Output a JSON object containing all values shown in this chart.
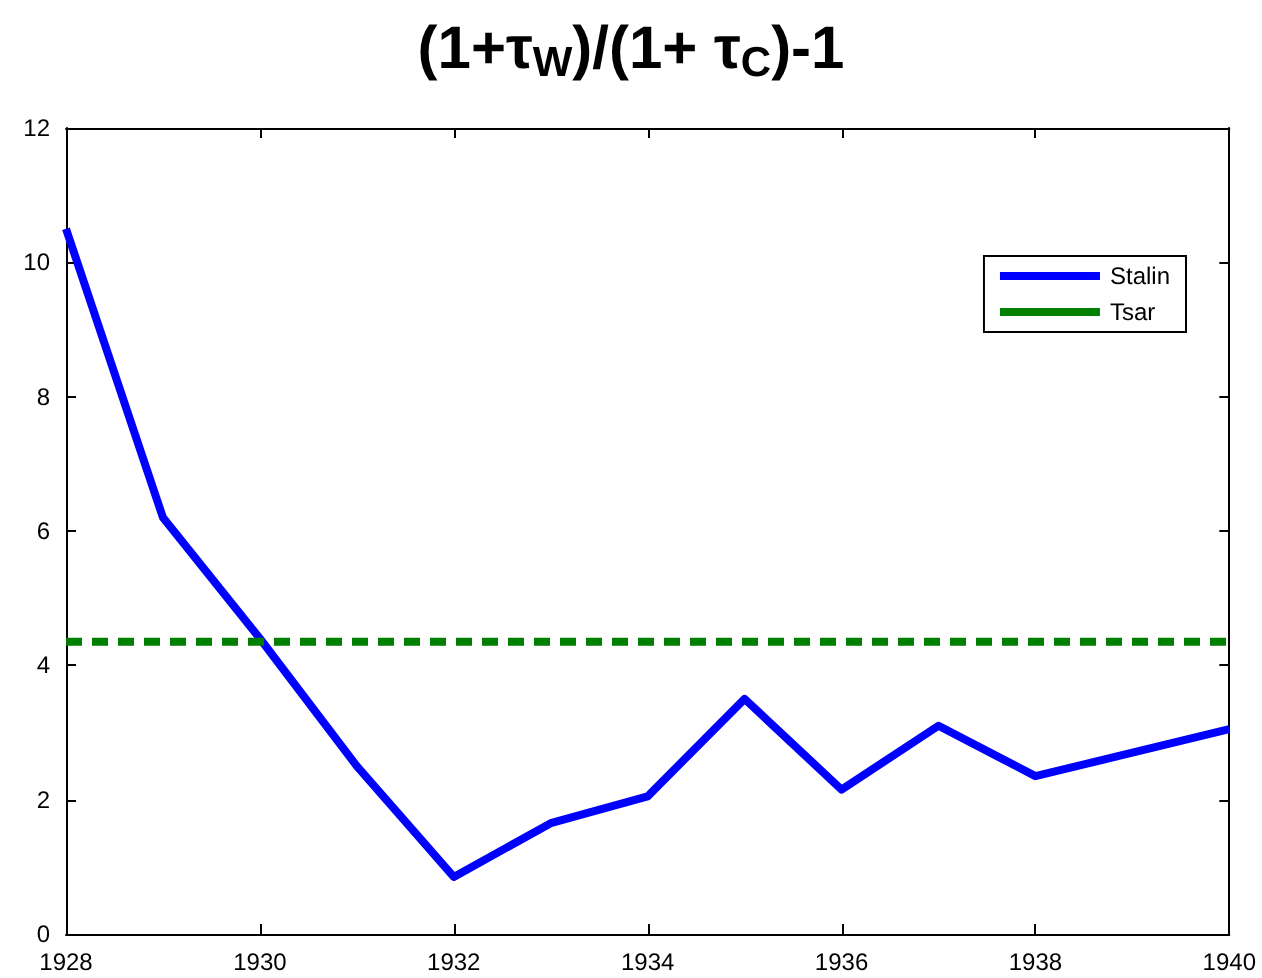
{
  "chart_data": {
    "type": "line",
    "title": "(1+τ$_{W}$)/(1+ τ$_{C}$)-1",
    "x": [
      1928,
      1929,
      1930,
      1931,
      1932,
      1933,
      1934,
      1935,
      1936,
      1937,
      1938,
      1939,
      1940
    ],
    "series": [
      {
        "name": "Stalin",
        "color": "#0000ff",
        "line_style": "solid",
        "values": [
          10.5,
          6.2,
          4.4,
          2.5,
          0.85,
          1.65,
          2.05,
          3.5,
          2.15,
          3.1,
          2.35,
          2.7,
          3.05
        ]
      },
      {
        "name": "Tsar",
        "color": "#008000",
        "line_style": "dashed",
        "values": [
          4.35,
          4.35,
          4.35,
          4.35,
          4.35,
          4.35,
          4.35,
          4.35,
          4.35,
          4.35,
          4.35,
          4.35,
          4.35
        ]
      }
    ],
    "xlim": [
      1928,
      1940
    ],
    "xticks": [
      1928,
      1930,
      1932,
      1934,
      1936,
      1938,
      1940
    ],
    "ylim": [
      0,
      12
    ],
    "yticks": [
      0,
      2,
      4,
      6,
      8,
      10,
      12
    ],
    "grid": false,
    "legend": "top right",
    "marker": "none"
  }
}
